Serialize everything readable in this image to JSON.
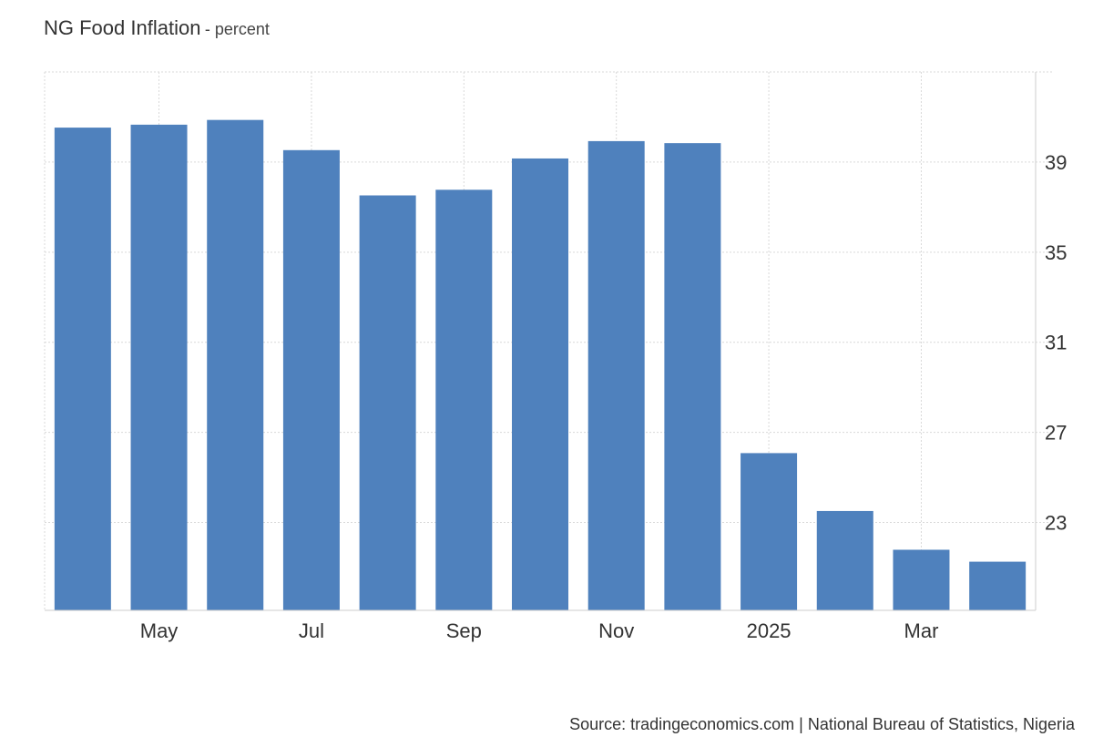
{
  "header": {
    "title": "NG Food Inflation",
    "subtitle": "- percent"
  },
  "footer": {
    "source": "Source: tradingeconomics.com | National Bureau of Statistics, Nigeria"
  },
  "colors": {
    "bar": "#4f81bd",
    "grid": "#d9d9d9",
    "axis": "#cccccc"
  },
  "chart_data": {
    "type": "bar",
    "categories": [
      "2024-04",
      "2024-05",
      "2024-06",
      "2024-07",
      "2024-08",
      "2024-09",
      "2024-10",
      "2024-11",
      "2024-12",
      "2025-01",
      "2025-02",
      "2025-03",
      "2025-04"
    ],
    "values": [
      40.53,
      40.66,
      40.87,
      39.53,
      37.52,
      37.77,
      39.16,
      39.93,
      39.84,
      26.08,
      23.51,
      21.79,
      21.26
    ],
    "x_tick_labels": [
      {
        "category": "2024-05",
        "label": "May"
      },
      {
        "category": "2024-07",
        "label": "Jul"
      },
      {
        "category": "2024-09",
        "label": "Sep"
      },
      {
        "category": "2024-11",
        "label": "Nov"
      },
      {
        "category": "2025-01",
        "label": "2025"
      },
      {
        "category": "2025-03",
        "label": "Mar"
      }
    ],
    "y_ticks": [
      23,
      27,
      31,
      35,
      39
    ],
    "ylim": [
      19.1,
      43
    ],
    "y_axis_side": "right",
    "grid": true,
    "legend": "none"
  }
}
